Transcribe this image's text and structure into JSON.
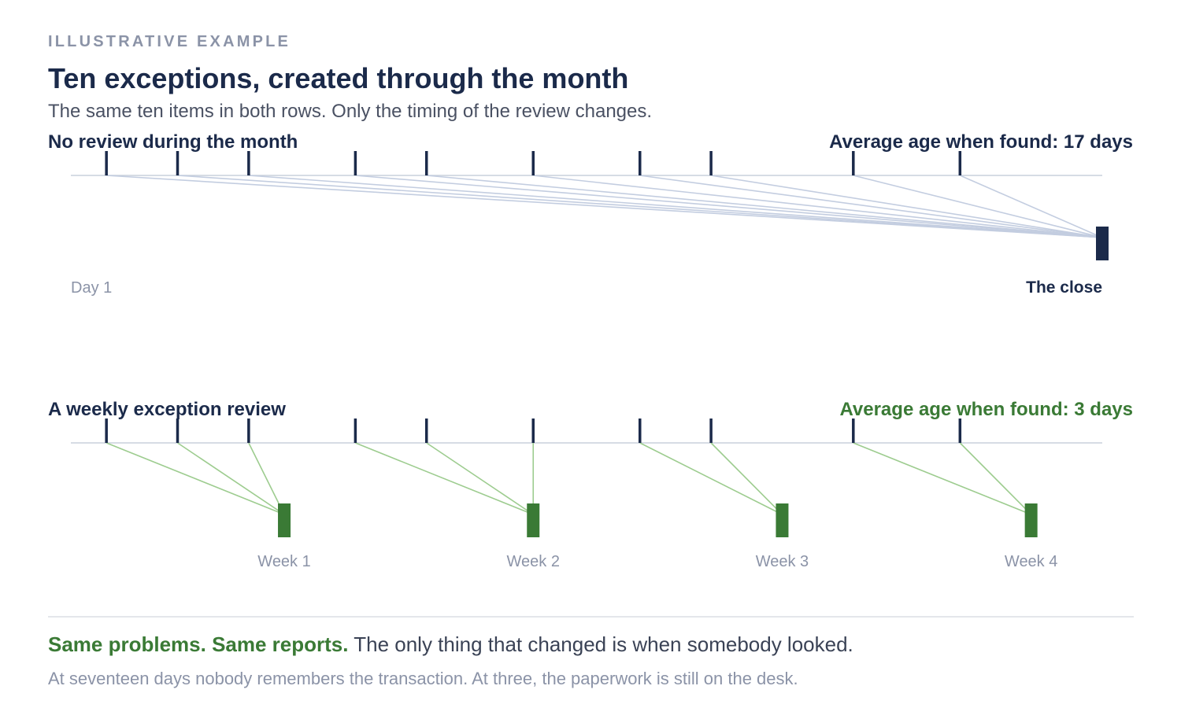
{
  "header": {
    "eyebrow": "ILLUSTRATIVE EXAMPLE",
    "title": "Ten exceptions, created through the month",
    "subtitle": "The same ten items in both rows. Only the timing of the review changes."
  },
  "rows": [
    {
      "id": "no-review",
      "label": "No review during the month",
      "summary": "Average age when found: 17 days",
      "summary_color": "#1b2a4a",
      "link_color": "#c3cde0",
      "review_color": "#1b2a4a",
      "start_label": "Day 1",
      "reviews": [
        {
          "label": "The close",
          "label_style": "bold",
          "day": 30,
          "items": [
            0,
            1,
            2,
            3,
            4,
            5,
            6,
            7,
            8,
            9
          ]
        }
      ]
    },
    {
      "id": "weekly-review",
      "label": "A weekly exception review",
      "summary": "Average age when found: 3 days",
      "summary_color": "#3a7a35",
      "link_color": "#9dcc8f",
      "review_color": "#3a7a35",
      "start_label": "",
      "reviews": [
        {
          "label": "Week 1",
          "label_style": "muted",
          "day": 7,
          "items": [
            0,
            1,
            2
          ]
        },
        {
          "label": "Week 2",
          "label_style": "muted",
          "day": 14,
          "items": [
            3,
            4,
            5
          ]
        },
        {
          "label": "Week 3",
          "label_style": "muted",
          "day": 21,
          "items": [
            6,
            7
          ]
        },
        {
          "label": "Week 4",
          "label_style": "muted",
          "day": 28,
          "items": [
            8,
            9
          ]
        }
      ]
    }
  ],
  "exception_days": [
    2,
    4,
    6,
    9,
    11,
    14,
    17,
    19,
    23,
    26
  ],
  "timeline": {
    "start_day": 1,
    "end_day": 30
  },
  "colors": {
    "tick": "#1b2a4a",
    "axis": "#c8d0dc",
    "accent_green": "#3a7a35",
    "navy": "#1b2a4a",
    "muted": "#8b93a7"
  },
  "footer": {
    "takeaway_emphasis": "Same problems. Same reports.",
    "takeaway_rest": " The only thing that changed is when somebody looked.",
    "footnote": "At seventeen days nobody remembers the transaction. At three, the paperwork is still on the desk."
  }
}
